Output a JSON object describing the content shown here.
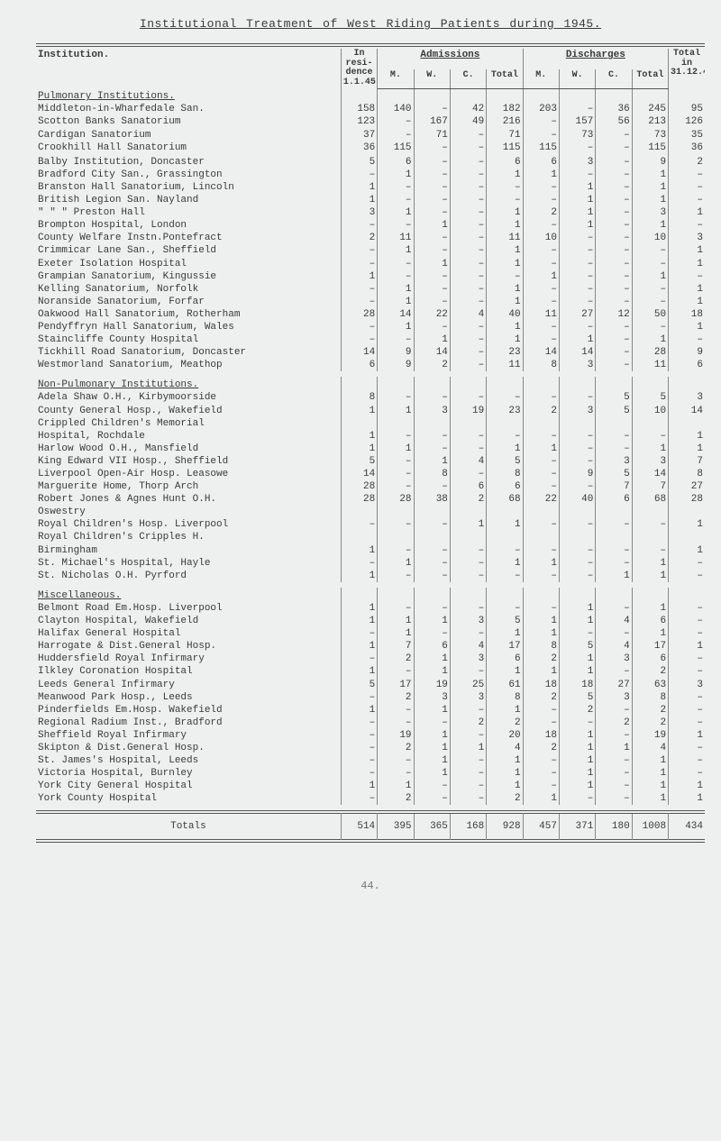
{
  "title": "Institutional Treatment of West Riding Patients during 1945.",
  "header": {
    "institution": "Institution.",
    "in_residence": "In resi- dence 1.1.45",
    "admissions": "Admissions",
    "discharges": "Discharges",
    "total": "Total in 31.12.45",
    "sub": {
      "M": "M.",
      "W": "W.",
      "C": "C.",
      "Total": "Total"
    }
  },
  "sections": [
    {
      "name": "Pulmonary Institutions.",
      "rows": [
        {
          "inst": "Middleton-in-Wharfedale San.",
          "r": "158",
          "aM": "140",
          "aW": "–",
          "aC": "42",
          "aT": "182",
          "dM": "203",
          "dW": "–",
          "dC": "36",
          "dT": "245",
          "tot": "95"
        },
        {
          "inst": "Scotton Banks Sanatorium",
          "r": "123",
          "aM": "–",
          "aW": "167",
          "aC": "49",
          "aT": "216",
          "dM": "–",
          "dW": "157",
          "dC": "56",
          "dT": "213",
          "tot": "126"
        },
        {
          "inst": "Cardigan Sanatorium",
          "r": "37",
          "aM": "–",
          "aW": "71",
          "aC": "–",
          "aT": "71",
          "dM": "–",
          "dW": "73",
          "dC": "–",
          "dT": "73",
          "tot": "35"
        },
        {
          "inst": "Crookhill Hall Sanatorium",
          "r": "36",
          "aM": "115",
          "aW": "–",
          "aC": "–",
          "aT": "115",
          "dM": "115",
          "dW": "–",
          "dC": "–",
          "dT": "115",
          "tot": "36"
        },
        {
          "inst": " ",
          "r": "",
          "aM": "",
          "aW": "",
          "aC": "",
          "aT": "",
          "dM": "",
          "dW": "",
          "dC": "",
          "dT": "",
          "tot": ""
        },
        {
          "inst": "Balby Institution, Doncaster",
          "r": "5",
          "aM": "6",
          "aW": "–",
          "aC": "–",
          "aT": "6",
          "dM": "6",
          "dW": "3",
          "dC": "–",
          "dT": "9",
          "tot": "2"
        },
        {
          "inst": "Bradford City San., Grassington",
          "r": "–",
          "aM": "1",
          "aW": "–",
          "aC": "–",
          "aT": "1",
          "dM": "1",
          "dW": "–",
          "dC": "–",
          "dT": "1",
          "tot": "–"
        },
        {
          "inst": "Branston Hall Sanatorium, Lincoln",
          "r": "1",
          "aM": "–",
          "aW": "–",
          "aC": "–",
          "aT": "–",
          "dM": "–",
          "dW": "1",
          "dC": "–",
          "dT": "1",
          "tot": "–"
        },
        {
          "inst": "British Legion San. Nayland",
          "r": "1",
          "aM": "–",
          "aW": "–",
          "aC": "–",
          "aT": "–",
          "dM": "–",
          "dW": "1",
          "dC": "–",
          "dT": "1",
          "tot": "–"
        },
        {
          "inst": "   \"     \"    \"   Preston Hall",
          "r": "3",
          "aM": "1",
          "aW": "–",
          "aC": "–",
          "aT": "1",
          "dM": "2",
          "dW": "1",
          "dC": "–",
          "dT": "3",
          "tot": "1"
        },
        {
          "inst": "Brompton Hospital, London",
          "r": "–",
          "aM": "–",
          "aW": "1",
          "aC": "–",
          "aT": "1",
          "dM": "–",
          "dW": "1",
          "dC": "–",
          "dT": "1",
          "tot": "–"
        },
        {
          "inst": "County Welfare Instn.Pontefract",
          "r": "2",
          "aM": "11",
          "aW": "–",
          "aC": "–",
          "aT": "11",
          "dM": "10",
          "dW": "–",
          "dC": "–",
          "dT": "10",
          "tot": "3"
        },
        {
          "inst": "Crimmicar Lane San., Sheffield",
          "r": "–",
          "aM": "1",
          "aW": "–",
          "aC": "–",
          "aT": "1",
          "dM": "–",
          "dW": "–",
          "dC": "–",
          "dT": "–",
          "tot": "1"
        },
        {
          "inst": "Exeter Isolation Hospital",
          "r": "–",
          "aM": "–",
          "aW": "1",
          "aC": "–",
          "aT": "1",
          "dM": "–",
          "dW": "–",
          "dC": "–",
          "dT": "–",
          "tot": "1"
        },
        {
          "inst": "Grampian Sanatorium, Kingussie",
          "r": "1",
          "aM": "–",
          "aW": "–",
          "aC": "–",
          "aT": "–",
          "dM": "1",
          "dW": "–",
          "dC": "–",
          "dT": "1",
          "tot": "–"
        },
        {
          "inst": "Kelling Sanatorium, Norfolk",
          "r": "–",
          "aM": "1",
          "aW": "–",
          "aC": "–",
          "aT": "1",
          "dM": "–",
          "dW": "–",
          "dC": "–",
          "dT": "–",
          "tot": "1"
        },
        {
          "inst": "Noranside Sanatorium, Forfar",
          "r": "–",
          "aM": "1",
          "aW": "–",
          "aC": "–",
          "aT": "1",
          "dM": "–",
          "dW": "–",
          "dC": "–",
          "dT": "–",
          "tot": "1"
        },
        {
          "inst": "Oakwood Hall Sanatorium, Rotherham",
          "r": "28",
          "aM": "14",
          "aW": "22",
          "aC": "4",
          "aT": "40",
          "dM": "11",
          "dW": "27",
          "dC": "12",
          "dT": "50",
          "tot": "18"
        },
        {
          "inst": "Pendyffryn Hall Sanatorium, Wales",
          "r": "–",
          "aM": "1",
          "aW": "–",
          "aC": "–",
          "aT": "1",
          "dM": "–",
          "dW": "–",
          "dC": "–",
          "dT": "–",
          "tot": "1"
        },
        {
          "inst": "Staincliffe County Hospital",
          "r": "–",
          "aM": "–",
          "aW": "1",
          "aC": "–",
          "aT": "1",
          "dM": "–",
          "dW": "1",
          "dC": "–",
          "dT": "1",
          "tot": "–"
        },
        {
          "inst": "Tickhill Road Sanatorium, Doncaster",
          "r": "14",
          "aM": "9",
          "aW": "14",
          "aC": "–",
          "aT": "23",
          "dM": "14",
          "dW": "14",
          "dC": "–",
          "dT": "28",
          "tot": "9"
        },
        {
          "inst": "Westmorland Sanatorium, Meathop",
          "r": "6",
          "aM": "9",
          "aW": "2",
          "aC": "–",
          "aT": "11",
          "dM": "8",
          "dW": "3",
          "dC": "–",
          "dT": "11",
          "tot": "6"
        }
      ]
    },
    {
      "name": "Non-Pulmonary Institutions.",
      "rows": [
        {
          "inst": "Adela Shaw O.H., Kirbymoorside",
          "r": "8",
          "aM": "–",
          "aW": "–",
          "aC": "–",
          "aT": "–",
          "dM": "–",
          "dW": "–",
          "dC": "5",
          "dT": "5",
          "tot": "3"
        },
        {
          "inst": "County General Hosp., Wakefield",
          "r": "1",
          "aM": "1",
          "aW": "3",
          "aC": "19",
          "aT": "23",
          "dM": "2",
          "dW": "3",
          "dC": "5",
          "dT": "10",
          "tot": "14"
        },
        {
          "inst": "Crippled Children's Memorial",
          "r": "",
          "aM": "",
          "aW": "",
          "aC": "",
          "aT": "",
          "dM": "",
          "dW": "",
          "dC": "",
          "dT": "",
          "tot": ""
        },
        {
          "inst": "  Hospital, Rochdale",
          "r": "1",
          "aM": "–",
          "aW": "–",
          "aC": "–",
          "aT": "–",
          "dM": "–",
          "dW": "–",
          "dC": "–",
          "dT": "–",
          "tot": "1"
        },
        {
          "inst": "Harlow Wood O.H., Mansfield",
          "r": "1",
          "aM": "1",
          "aW": "–",
          "aC": "–",
          "aT": "1",
          "dM": "1",
          "dW": "–",
          "dC": "–",
          "dT": "1",
          "tot": "1"
        },
        {
          "inst": "King Edward VII Hosp., Sheffield",
          "r": "5",
          "aM": "–",
          "aW": "1",
          "aC": "4",
          "aT": "5",
          "dM": "–",
          "dW": "–",
          "dC": "3",
          "dT": "3",
          "tot": "7"
        },
        {
          "inst": "Liverpool Open-Air Hosp. Leasowe",
          "r": "14",
          "aM": "–",
          "aW": "8",
          "aC": "–",
          "aT": "8",
          "dM": "–",
          "dW": "9",
          "dC": "5",
          "dT": "14",
          "tot": "8"
        },
        {
          "inst": "Marguerite Home, Thorp Arch",
          "r": "28",
          "aM": "–",
          "aW": "–",
          "aC": "6",
          "aT": "6",
          "dM": "–",
          "dW": "–",
          "dC": "7",
          "dT": "7",
          "tot": "27"
        },
        {
          "inst": "Robert Jones & Agnes Hunt O.H.",
          "r": "28",
          "aM": "28",
          "aW": "38",
          "aC": "2",
          "aT": "68",
          "dM": "22",
          "dW": "40",
          "dC": "6",
          "dT": "68",
          "tot": "28"
        },
        {
          "inst": "  Oswestry",
          "r": "",
          "aM": "",
          "aW": "",
          "aC": "",
          "aT": "",
          "dM": "",
          "dW": "",
          "dC": "",
          "dT": "",
          "tot": ""
        },
        {
          "inst": "Royal Children's Hosp. Liverpool",
          "r": "–",
          "aM": "–",
          "aW": "–",
          "aC": "1",
          "aT": "1",
          "dM": "–",
          "dW": "–",
          "dC": "–",
          "dT": "–",
          "tot": "1"
        },
        {
          "inst": "Royal Children's Cripples H.",
          "r": "",
          "aM": "",
          "aW": "",
          "aC": "",
          "aT": "",
          "dM": "",
          "dW": "",
          "dC": "",
          "dT": "",
          "tot": ""
        },
        {
          "inst": "  Birmingham",
          "r": "1",
          "aM": "–",
          "aW": "–",
          "aC": "–",
          "aT": "–",
          "dM": "–",
          "dW": "–",
          "dC": "–",
          "dT": "–",
          "tot": "1"
        },
        {
          "inst": "St. Michael's Hospital, Hayle",
          "r": "–",
          "aM": "1",
          "aW": "–",
          "aC": "–",
          "aT": "1",
          "dM": "1",
          "dW": "–",
          "dC": "–",
          "dT": "1",
          "tot": "–"
        },
        {
          "inst": "St. Nicholas O.H. Pyrford",
          "r": "1",
          "aM": "–",
          "aW": "–",
          "aC": "–",
          "aT": "–",
          "dM": "–",
          "dW": "–",
          "dC": "1",
          "dT": "1",
          "tot": "–"
        }
      ]
    },
    {
      "name": "Miscellaneous.",
      "rows": [
        {
          "inst": "Belmont Road Em.Hosp. Liverpool",
          "r": "1",
          "aM": "–",
          "aW": "–",
          "aC": "–",
          "aT": "–",
          "dM": "–",
          "dW": "1",
          "dC": "–",
          "dT": "1",
          "tot": "–"
        },
        {
          "inst": "Clayton Hospital, Wakefield",
          "r": "1",
          "aM": "1",
          "aW": "1",
          "aC": "3",
          "aT": "5",
          "dM": "1",
          "dW": "1",
          "dC": "4",
          "dT": "6",
          "tot": "–"
        },
        {
          "inst": "Halifax General Hospital",
          "r": "–",
          "aM": "1",
          "aW": "–",
          "aC": "–",
          "aT": "1",
          "dM": "1",
          "dW": "–",
          "dC": "–",
          "dT": "1",
          "tot": "–"
        },
        {
          "inst": "Harrogate & Dist.General Hosp.",
          "r": "1",
          "aM": "7",
          "aW": "6",
          "aC": "4",
          "aT": "17",
          "dM": "8",
          "dW": "5",
          "dC": "4",
          "dT": "17",
          "tot": "1"
        },
        {
          "inst": "Huddersfield Royal Infirmary",
          "r": "–",
          "aM": "2",
          "aW": "1",
          "aC": "3",
          "aT": "6",
          "dM": "2",
          "dW": "1",
          "dC": "3",
          "dT": "6",
          "tot": "–"
        },
        {
          "inst": "Ilkley Coronation Hospital",
          "r": "1",
          "aM": "–",
          "aW": "1",
          "aC": "–",
          "aT": "1",
          "dM": "1",
          "dW": "1",
          "dC": "–",
          "dT": "2",
          "tot": "–"
        },
        {
          "inst": "Leeds General Infirmary",
          "r": "5",
          "aM": "17",
          "aW": "19",
          "aC": "25",
          "aT": "61",
          "dM": "18",
          "dW": "18",
          "dC": "27",
          "dT": "63",
          "tot": "3"
        },
        {
          "inst": "Meanwood Park Hosp., Leeds",
          "r": "–",
          "aM": "2",
          "aW": "3",
          "aC": "3",
          "aT": "8",
          "dM": "2",
          "dW": "5",
          "dC": "3",
          "dT": "8",
          "tot": "–"
        },
        {
          "inst": "Pinderfields Em.Hosp. Wakefield",
          "r": "1",
          "aM": "–",
          "aW": "1",
          "aC": "–",
          "aT": "1",
          "dM": "–",
          "dW": "2",
          "dC": "–",
          "dT": "2",
          "tot": "–"
        },
        {
          "inst": "Regional Radium Inst., Bradford",
          "r": "–",
          "aM": "–",
          "aW": "–",
          "aC": "2",
          "aT": "2",
          "dM": "–",
          "dW": "–",
          "dC": "2",
          "dT": "2",
          "tot": "–"
        },
        {
          "inst": "Sheffield Royal Infirmary",
          "r": "–",
          "aM": "19",
          "aW": "1",
          "aC": "–",
          "aT": "20",
          "dM": "18",
          "dW": "1",
          "dC": "–",
          "dT": "19",
          "tot": "1"
        },
        {
          "inst": "Skipton & Dist.General Hosp.",
          "r": "–",
          "aM": "2",
          "aW": "1",
          "aC": "1",
          "aT": "4",
          "dM": "2",
          "dW": "1",
          "dC": "1",
          "dT": "4",
          "tot": "–"
        },
        {
          "inst": "St. James's Hospital, Leeds",
          "r": "–",
          "aM": "–",
          "aW": "1",
          "aC": "–",
          "aT": "1",
          "dM": "–",
          "dW": "1",
          "dC": "–",
          "dT": "1",
          "tot": "–"
        },
        {
          "inst": "Victoria Hospital, Burnley",
          "r": "–",
          "aM": "–",
          "aW": "1",
          "aC": "–",
          "aT": "1",
          "dM": "–",
          "dW": "1",
          "dC": "–",
          "dT": "1",
          "tot": "–"
        },
        {
          "inst": "York City General Hospital",
          "r": "1",
          "aM": "1",
          "aW": "–",
          "aC": "–",
          "aT": "1",
          "dM": "–",
          "dW": "1",
          "dC": "–",
          "dT": "1",
          "tot": "1"
        },
        {
          "inst": "York County Hospital",
          "r": "–",
          "aM": "2",
          "aW": "–",
          "aC": "–",
          "aT": "2",
          "dM": "1",
          "dW": "–",
          "dC": "–",
          "dT": "1",
          "tot": "1"
        }
      ]
    }
  ],
  "totals": {
    "label": "Totals",
    "r": "514",
    "aM": "395",
    "aW": "365",
    "aC": "168",
    "aT": "928",
    "dM": "457",
    "dW": "371",
    "dC": "180",
    "dT": "1008",
    "tot": "434"
  },
  "footer_page": "44."
}
